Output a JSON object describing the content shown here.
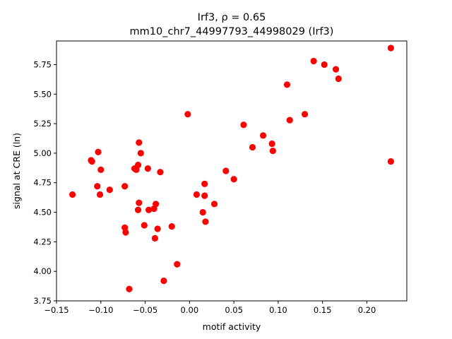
{
  "chart_data": {
    "type": "scatter",
    "title_line1": "Irf3, ρ = 0.65",
    "title_line2": "mm10_chr7_44997793_44998029 (Irf3)",
    "xlabel": "motif activity",
    "ylabel": "signal at CRE (ln)",
    "xlim": [
      -0.15,
      0.245
    ],
    "ylim": [
      3.75,
      5.95
    ],
    "xticks": [
      -0.15,
      -0.1,
      -0.05,
      0.0,
      0.05,
      0.1,
      0.15,
      0.2
    ],
    "xtick_labels": [
      "−0.15",
      "−0.10",
      "−0.05",
      "0.00",
      "0.05",
      "0.10",
      "0.15",
      "0.20"
    ],
    "yticks": [
      3.75,
      4.0,
      4.25,
      4.5,
      4.75,
      5.0,
      5.25,
      5.5,
      5.75
    ],
    "ytick_labels": [
      "3.75",
      "4.00",
      "4.25",
      "4.50",
      "4.75",
      "5.00",
      "5.25",
      "5.50",
      "5.75"
    ],
    "grid": false,
    "marker_color": "#ff0000",
    "series": [
      {
        "points": [
          [
            -0.132,
            4.65
          ],
          [
            -0.111,
            4.94
          ],
          [
            -0.11,
            4.93
          ],
          [
            -0.103,
            5.01
          ],
          [
            -0.1,
            4.86
          ],
          [
            -0.104,
            4.72
          ],
          [
            -0.101,
            4.65
          ],
          [
            -0.09,
            4.69
          ],
          [
            -0.073,
            4.72
          ],
          [
            -0.073,
            4.37
          ],
          [
            -0.072,
            4.33
          ],
          [
            -0.068,
            3.85
          ],
          [
            -0.062,
            4.87
          ],
          [
            -0.06,
            4.86
          ],
          [
            -0.058,
            4.9
          ],
          [
            -0.057,
            5.09
          ],
          [
            -0.055,
            5.0
          ],
          [
            -0.057,
            4.58
          ],
          [
            -0.058,
            4.52
          ],
          [
            -0.051,
            4.39
          ],
          [
            -0.047,
            4.87
          ],
          [
            -0.046,
            4.52
          ],
          [
            -0.04,
            4.53
          ],
          [
            -0.038,
            4.57
          ],
          [
            -0.039,
            4.28
          ],
          [
            -0.036,
            4.36
          ],
          [
            -0.033,
            4.84
          ],
          [
            -0.029,
            3.92
          ],
          [
            -0.02,
            4.38
          ],
          [
            -0.014,
            4.06
          ],
          [
            -0.002,
            5.33
          ],
          [
            0.008,
            4.65
          ],
          [
            0.015,
            4.5
          ],
          [
            0.017,
            4.74
          ],
          [
            0.017,
            4.64
          ],
          [
            0.018,
            4.42
          ],
          [
            0.028,
            4.57
          ],
          [
            0.041,
            4.85
          ],
          [
            0.05,
            4.78
          ],
          [
            0.061,
            5.24
          ],
          [
            0.071,
            5.05
          ],
          [
            0.083,
            5.15
          ],
          [
            0.093,
            5.08
          ],
          [
            0.094,
            5.02
          ],
          [
            0.11,
            5.58
          ],
          [
            0.113,
            5.28
          ],
          [
            0.13,
            5.33
          ],
          [
            0.14,
            5.78
          ],
          [
            0.152,
            5.75
          ],
          [
            0.165,
            5.71
          ],
          [
            0.168,
            5.63
          ],
          [
            0.227,
            5.89
          ],
          [
            0.227,
            4.93
          ]
        ]
      }
    ]
  }
}
